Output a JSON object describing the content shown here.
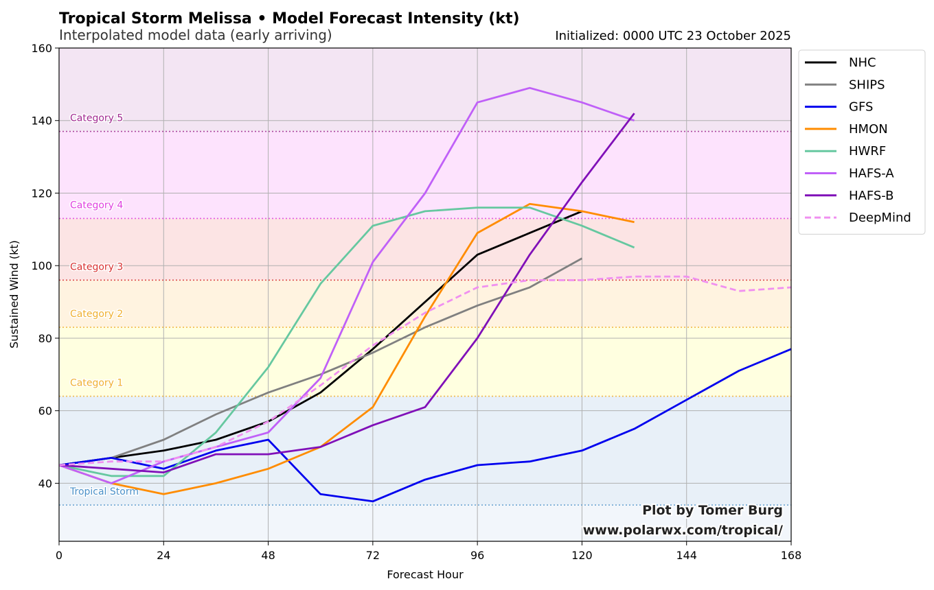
{
  "chart_data": {
    "type": "line",
    "title": "Tropical Storm Melissa • Model Forecast Intensity (kt)",
    "subtitle": "Interpolated model data (early arriving)",
    "initialized": "Initialized: 0000 UTC 23 October 2025",
    "xlabel": "Forecast Hour",
    "ylabel": "Sustained Wind (kt)",
    "xlim": [
      0,
      168
    ],
    "ylim": [
      24,
      160
    ],
    "xticks": [
      0,
      24,
      48,
      72,
      96,
      120,
      144,
      168
    ],
    "yticks": [
      40,
      60,
      80,
      100,
      120,
      140,
      160
    ],
    "grid": true,
    "legend_position": "outside-top-right",
    "categories": [
      {
        "name": "Tropical Storm",
        "threshold": 34,
        "upper": 64,
        "color": "#4a90c8",
        "fill": "#e8f0f8"
      },
      {
        "name": "Category 1",
        "threshold": 64,
        "upper": 83,
        "color": "#f0b030",
        "fill": "#ffffe0"
      },
      {
        "name": "Category 2",
        "threshold": 83,
        "upper": 96,
        "color": "#f0b030",
        "fill": "#fff3e0"
      },
      {
        "name": "Category 3",
        "threshold": 96,
        "upper": 113,
        "color": "#d83030",
        "fill": "#fce4e4"
      },
      {
        "name": "Category 4",
        "threshold": 113,
        "upper": 137,
        "color": "#e040e0",
        "fill": "#fde3fd"
      },
      {
        "name": "Category 5",
        "threshold": 137,
        "upper": 160,
        "color": "#a02890",
        "fill": "#f3e5f3"
      }
    ],
    "below_ts_fill": "#f2f6fb",
    "series": [
      {
        "name": "NHC",
        "color": "#000000",
        "dash": false,
        "x": [
          0,
          12,
          24,
          36,
          48,
          60,
          72,
          84,
          96,
          108,
          120
        ],
        "values": [
          45,
          47,
          49,
          52,
          57,
          65,
          77,
          90,
          103,
          109,
          115
        ]
      },
      {
        "name": "SHIPS",
        "color": "#808080",
        "dash": false,
        "x": [
          0,
          12,
          24,
          36,
          48,
          60,
          72,
          84,
          96,
          108,
          120
        ],
        "values": [
          45,
          47,
          52,
          59,
          65,
          70,
          76,
          83,
          89,
          94,
          102
        ]
      },
      {
        "name": "GFS",
        "color": "#0000ee",
        "dash": false,
        "x": [
          0,
          12,
          24,
          36,
          48,
          60,
          72,
          84,
          96,
          108,
          120,
          132,
          144,
          156,
          168
        ],
        "values": [
          45,
          47,
          44,
          49,
          52,
          37,
          35,
          41,
          45,
          46,
          49,
          55,
          63,
          71,
          77
        ]
      },
      {
        "name": "HMON",
        "color": "#ff8c00",
        "dash": false,
        "x": [
          0,
          12,
          24,
          36,
          48,
          60,
          72,
          84,
          96,
          108,
          120,
          132
        ],
        "values": [
          45,
          40,
          37,
          40,
          44,
          50,
          61,
          86,
          109,
          117,
          115,
          112
        ]
      },
      {
        "name": "HWRF",
        "color": "#66c8a0",
        "dash": false,
        "x": [
          0,
          12,
          24,
          36,
          48,
          60,
          72,
          84,
          96,
          108,
          120,
          132
        ],
        "values": [
          45,
          42,
          42,
          54,
          72,
          95,
          111,
          115,
          116,
          116,
          111,
          105
        ]
      },
      {
        "name": "HAFS-A",
        "color": "#c060f8",
        "dash": false,
        "x": [
          0,
          12,
          24,
          36,
          48,
          60,
          72,
          84,
          96,
          108,
          120,
          132
        ],
        "values": [
          45,
          40,
          46,
          50,
          54,
          69,
          101,
          120,
          145,
          149,
          145,
          140
        ]
      },
      {
        "name": "HAFS-B",
        "color": "#8010b8",
        "dash": false,
        "x": [
          0,
          12,
          24,
          36,
          48,
          60,
          72,
          84,
          96,
          108,
          120,
          132
        ],
        "values": [
          45,
          44,
          43,
          48,
          48,
          50,
          56,
          61,
          80,
          103,
          123,
          142
        ]
      },
      {
        "name": "DeepMind",
        "color": "#f090f0",
        "dash": true,
        "x": [
          0,
          12,
          24,
          36,
          48,
          60,
          72,
          84,
          96,
          108,
          120,
          132,
          144,
          156,
          168
        ],
        "values": [
          45,
          46,
          46,
          50,
          57,
          67,
          78,
          87,
          94,
          96,
          96,
          97,
          97,
          93,
          94
        ]
      }
    ],
    "credit_line1": "Plot by Tomer Burg",
    "credit_line2": "www.polarwx.com/tropical/"
  }
}
